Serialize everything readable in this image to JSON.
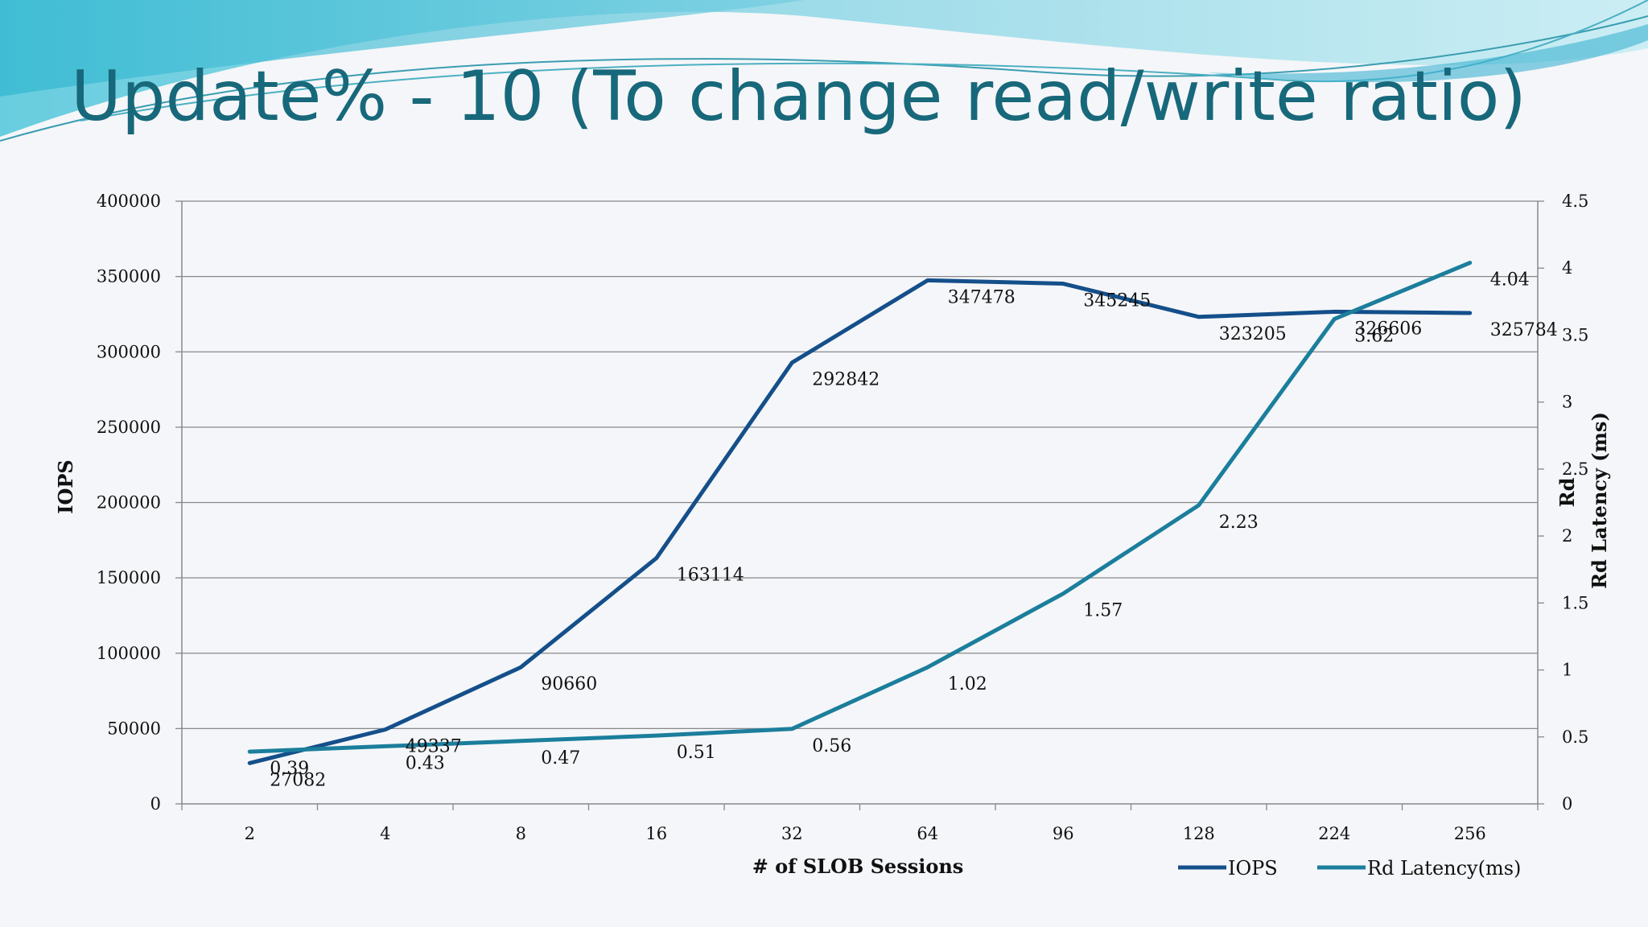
{
  "slide": {
    "title": "Update% - 10 (To change read/write ratio)"
  },
  "colors": {
    "iops": "#144f8a",
    "latency": "#1b7e9c",
    "title": "#17687a",
    "grid": "#888888"
  },
  "chart_data": {
    "type": "line",
    "title": "",
    "xlabel": "# of SLOB Sessions",
    "ylabel": "IOPS",
    "y2label_line1": "Rd",
    "y2label_line2": "Rd Latency (ms)",
    "categories": [
      "2",
      "4",
      "8",
      "16",
      "32",
      "64",
      "96",
      "128",
      "224",
      "256"
    ],
    "ylim": [
      0,
      400000
    ],
    "yticks": [
      "0",
      "50000",
      "100000",
      "150000",
      "200000",
      "250000",
      "300000",
      "350000",
      "400000"
    ],
    "y2lim": [
      0,
      4.5
    ],
    "y2ticks": [
      "0",
      "0.5",
      "1",
      "1.5",
      "2",
      "2.5",
      "3",
      "3.5",
      "4",
      "4.5"
    ],
    "grid": true,
    "legend_position": "bottom-right",
    "series": [
      {
        "name": "IOPS",
        "axis": "left",
        "values": [
          27082,
          49337,
          90660,
          163114,
          292842,
          347478,
          345245,
          323205,
          326606,
          325784
        ],
        "labels": [
          "27082",
          "49337",
          "90660",
          "163114",
          "292842",
          "347478",
          "345245",
          "323205",
          "326606",
          "325784"
        ]
      },
      {
        "name": "Rd Latency(ms)",
        "axis": "right",
        "values": [
          0.39,
          0.43,
          0.47,
          0.51,
          0.56,
          1.02,
          1.57,
          2.23,
          3.62,
          4.04
        ],
        "labels": [
          "0.39",
          "0.43",
          "0.47",
          "0.51",
          "0.56",
          "1.02",
          "1.57",
          "2.23",
          "3.62",
          "4.04"
        ]
      }
    ]
  }
}
